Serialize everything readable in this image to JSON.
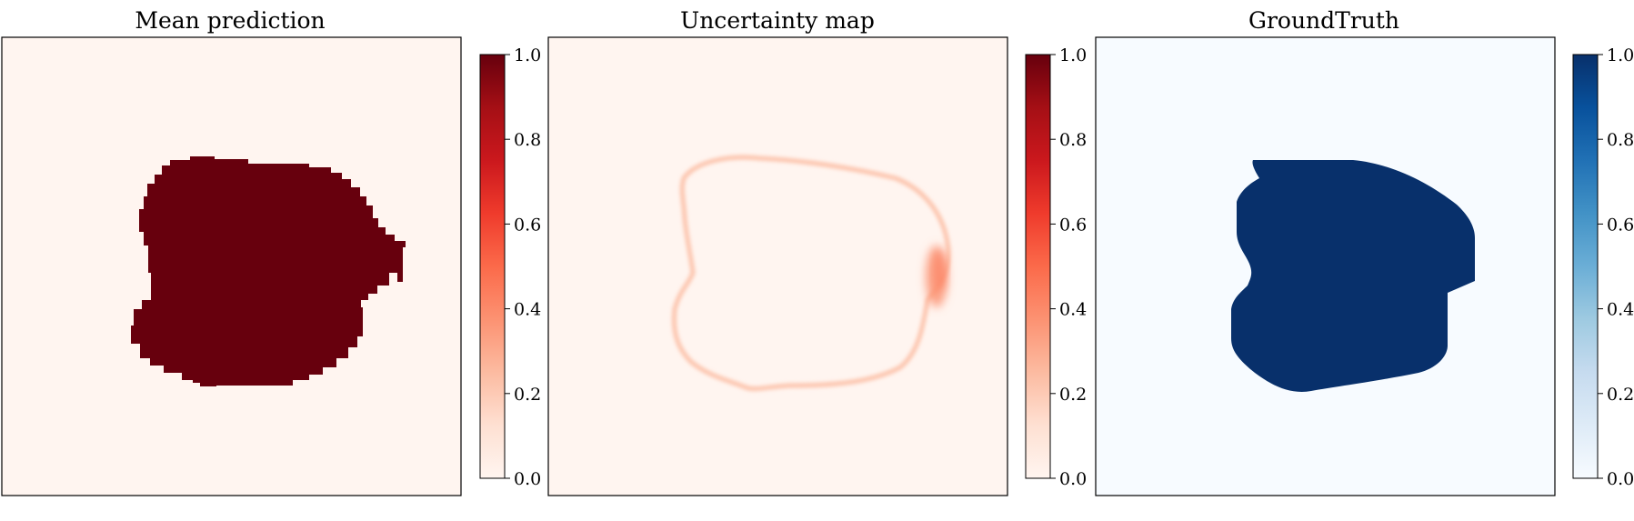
{
  "chart_data": [
    {
      "type": "heatmap",
      "title": "Mean prediction",
      "colormap": "Reds",
      "colorbar": {
        "range": [
          0,
          1
        ],
        "ticks": [
          "0.0",
          "0.2",
          "0.4",
          "0.6",
          "0.8",
          "1.0"
        ],
        "color_low": "#fff5f0",
        "color_high": "#67000d"
      },
      "field": "blocky-blob",
      "background_value": 0.0,
      "region_value": 1.0,
      "axes_ticks_visible": false
    },
    {
      "type": "heatmap",
      "title": "Uncertainty map",
      "colormap": "Reds",
      "colorbar": {
        "range": [
          0,
          1
        ],
        "ticks": [
          "0.0",
          "0.2",
          "0.4",
          "0.6",
          "0.8",
          "1.0"
        ],
        "color_low": "#fff5f0",
        "color_high": "#67000d"
      },
      "field": "boundary-ring",
      "background_value": 0.0,
      "ring_value": 0.1,
      "peak_value": 0.45,
      "axes_ticks_visible": false
    },
    {
      "type": "heatmap",
      "title": "GroundTruth",
      "colormap": "Blues",
      "colorbar": {
        "range": [
          0,
          1
        ],
        "ticks": [
          "0.0",
          "0.2",
          "0.4",
          "0.6",
          "0.8",
          "1.0"
        ],
        "color_low": "#f7fbff",
        "color_high": "#08306b"
      },
      "field": "smooth-blob",
      "background_value": 0.0,
      "region_value": 1.0,
      "axes_ticks_visible": false
    }
  ]
}
